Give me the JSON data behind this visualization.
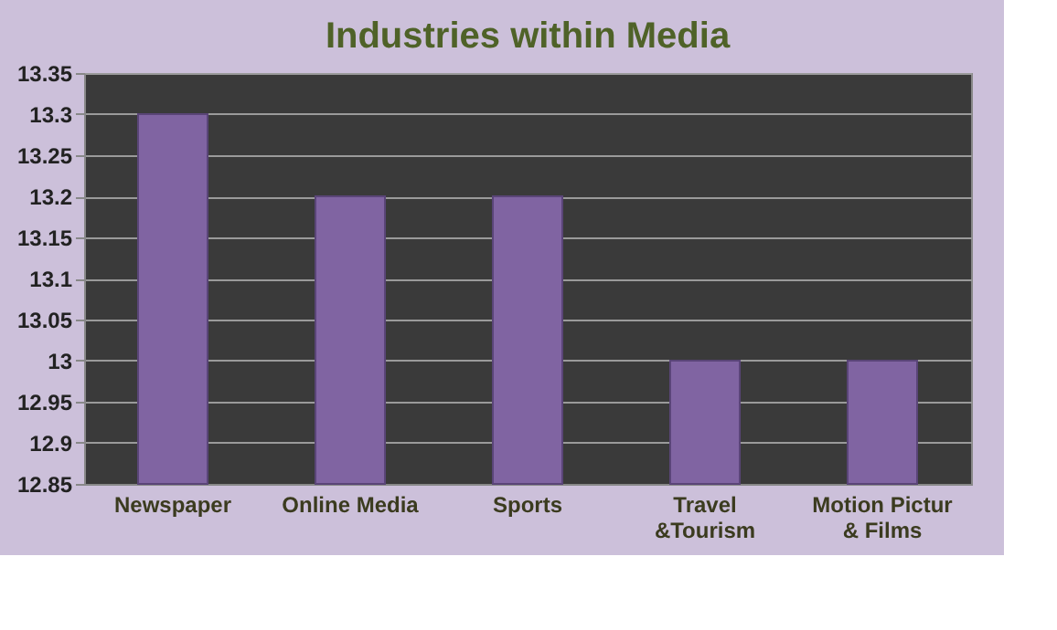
{
  "chart_data": {
    "type": "bar",
    "title": "Industries within Media",
    "categories": [
      "Newspaper",
      "Online Media",
      "Sports",
      "Travel\n&Tourism",
      "Motion Pictur\n& Films"
    ],
    "values": [
      13.3,
      13.2,
      13.2,
      13.0,
      13.0
    ],
    "color": "#8064a2",
    "ylim": [
      12.85,
      13.35
    ],
    "yticks": [
      12.85,
      12.9,
      12.95,
      13,
      13.05,
      13.1,
      13.15,
      13.2,
      13.25,
      13.3,
      13.35
    ],
    "grid": "y"
  }
}
